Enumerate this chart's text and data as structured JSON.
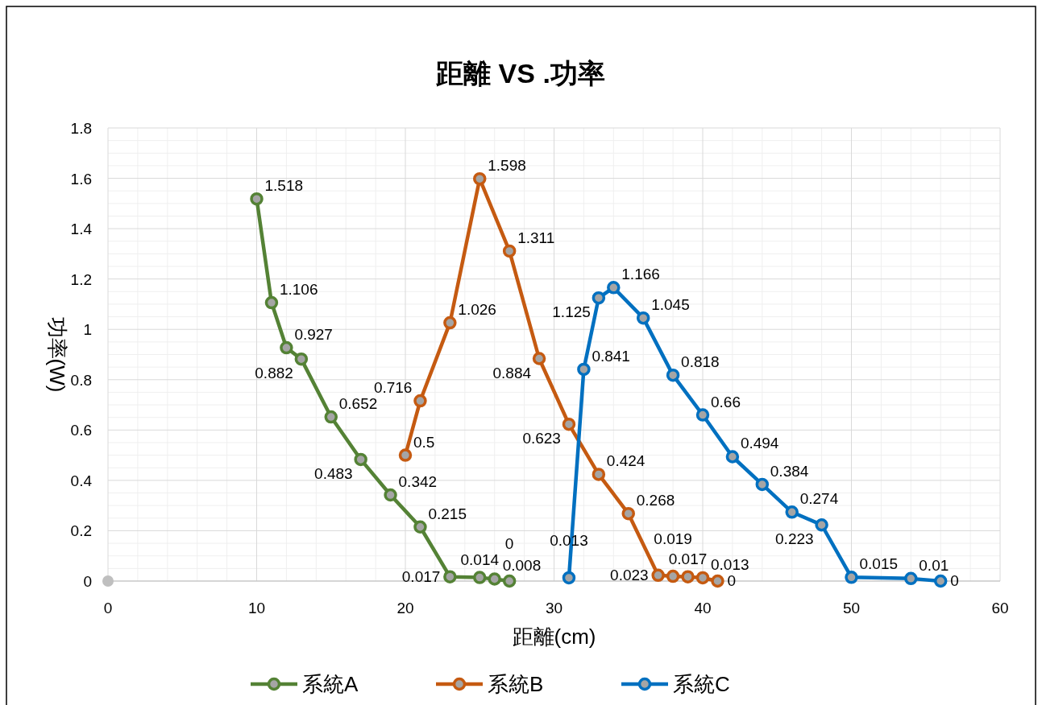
{
  "chart_data": {
    "type": "line",
    "title": "距離 VS .功率",
    "xlabel": "距離(cm)",
    "ylabel": "功率(W)",
    "xlim": [
      0,
      60
    ],
    "xticks": [
      0,
      10,
      20,
      30,
      40,
      50,
      60
    ],
    "ylim": [
      0,
      1.8
    ],
    "yticks": [
      0,
      0.2,
      0.4,
      0.6,
      0.8,
      1,
      1.2,
      1.4,
      1.6,
      1.8
    ],
    "grid": true,
    "legend": "bottom",
    "marker": "circle",
    "line_style": "solid",
    "data_labels": true,
    "series": [
      {
        "name": "系統A",
        "color": "#548235",
        "x": [
          10,
          11,
          12,
          13,
          15,
          17,
          19,
          21,
          23,
          25,
          26,
          27
        ],
        "values": [
          1.518,
          1.106,
          0.927,
          0.882,
          0.652,
          0.483,
          0.342,
          0.215,
          0.017,
          0.014,
          0.008,
          0
        ]
      },
      {
        "name": "系統B",
        "color": "#c55a11",
        "x": [
          20,
          21,
          23,
          25,
          27,
          29,
          31,
          33,
          35,
          37,
          38,
          39,
          40,
          41
        ],
        "values": [
          0.5,
          0.716,
          1.026,
          1.598,
          1.311,
          0.884,
          0.623,
          0.424,
          0.268,
          0.023,
          0.019,
          0.017,
          0.013,
          0
        ]
      },
      {
        "name": "系統C",
        "color": "#0070c0",
        "x": [
          31,
          32,
          33,
          34,
          36,
          38,
          40,
          42,
          44,
          46,
          48,
          50,
          54,
          56
        ],
        "values": [
          0.013,
          0.841,
          1.125,
          1.166,
          1.045,
          0.818,
          0.66,
          0.494,
          0.384,
          0.274,
          0.223,
          0.015,
          0.01,
          0
        ]
      },
      {
        "type": "scatter",
        "color": "#bfbfbf",
        "x": [
          0
        ],
        "values": [
          0
        ],
        "value_labels": [
          null
        ]
      }
    ]
  }
}
